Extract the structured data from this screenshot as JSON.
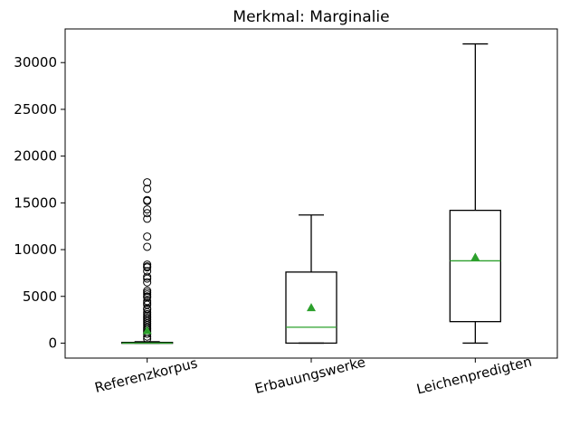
{
  "chart_data": {
    "type": "box",
    "title": "Merkmal: Marginalie",
    "xlabel": "",
    "ylabel": "",
    "categories": [
      "Referenzkorpus",
      "Erbauungswerke",
      "Leichenpredigten"
    ],
    "ylim": [
      -1600,
      33600
    ],
    "y_ticks": [
      0,
      5000,
      10000,
      15000,
      20000,
      25000,
      30000
    ],
    "grid": false,
    "boxes": [
      {
        "name": "Referenzkorpus",
        "whisker_low": 0,
        "q1": 0,
        "median": 0,
        "q3": 80,
        "whisker_high": 150,
        "mean": 1350,
        "outliers": [
          17200,
          16500,
          15300,
          15200,
          14300,
          13900,
          13300,
          11400,
          10300,
          8400,
          8200,
          8100,
          7700,
          7100,
          6900,
          6500,
          5600,
          5400,
          5200,
          5000,
          4900,
          4500,
          4300,
          4100,
          3700,
          3600,
          3300,
          3100,
          2900,
          2700,
          2500,
          2300,
          2100,
          1900,
          1700,
          1550,
          1400,
          1200,
          1000,
          700,
          450
        ]
      },
      {
        "name": "Erbauungswerke",
        "whisker_low": 0,
        "q1": 0,
        "median": 1700,
        "q3": 7600,
        "whisker_high": 13700,
        "mean": 3800,
        "outliers": []
      },
      {
        "name": "Leichenpredigten",
        "whisker_low": 0,
        "q1": 2300,
        "median": 8800,
        "q3": 14200,
        "whisker_high": 32000,
        "mean": 9200,
        "outliers": []
      }
    ],
    "colors": {
      "box": "#000000",
      "median": "#2ca02c",
      "mean": "#2ca02c",
      "outlier": "#000000"
    }
  }
}
